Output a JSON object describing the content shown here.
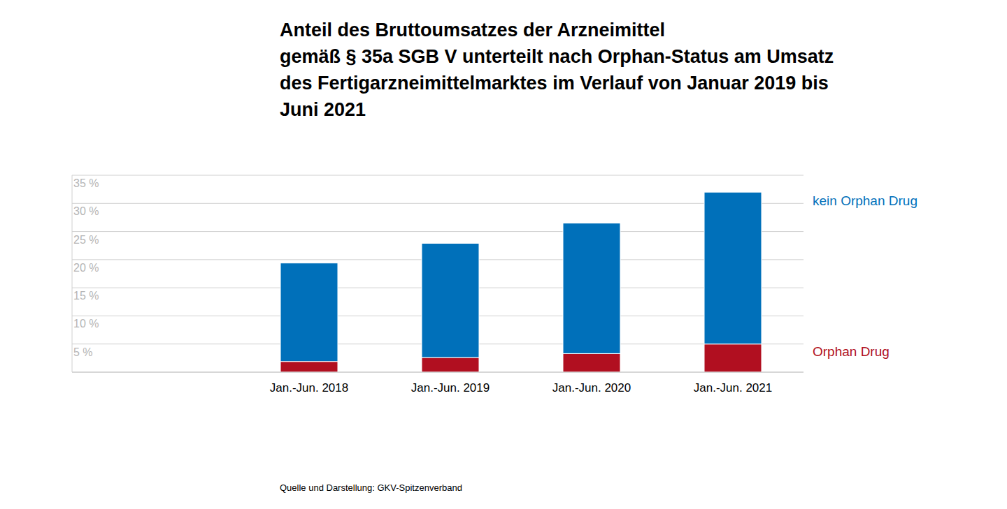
{
  "chart_data": {
    "type": "bar",
    "title": "Anteil des Bruttoumsatzes der Arzneimittel\ngemäß § 35a SGB V unterteilt nach Orphan-Status am Umsatz\ndes Fertigarzneimittelmarktes im Verlauf von Januar 2019 bis\nJuni 2021",
    "source": "Quelle und Darstellung: GKV-Spitzenverband",
    "categories": [
      "Jan.-Jun. 2018",
      "Jan.-Jun. 2019",
      "Jan.-Jun. 2020",
      "Jan.-Jun. 2021"
    ],
    "series": [
      {
        "name": "Orphan Drug",
        "color": "#b10f20",
        "values": [
          1.9,
          2.6,
          3.3,
          5.0
        ]
      },
      {
        "name": "kein Orphan Drug",
        "color": "#0070ba",
        "values": [
          17.5,
          20.3,
          23.2,
          27.0
        ]
      }
    ],
    "stacked": true,
    "grid": true,
    "ylim": [
      0,
      35
    ],
    "yticks": [
      {
        "value": 5,
        "label": "5 %"
      },
      {
        "value": 10,
        "label": "10 %"
      },
      {
        "value": 15,
        "label": "15 %"
      },
      {
        "value": 20,
        "label": "20 %"
      },
      {
        "value": 25,
        "label": "25 %"
      },
      {
        "value": 30,
        "label": "30 %"
      },
      {
        "value": 35,
        "label": "35 %"
      }
    ]
  }
}
